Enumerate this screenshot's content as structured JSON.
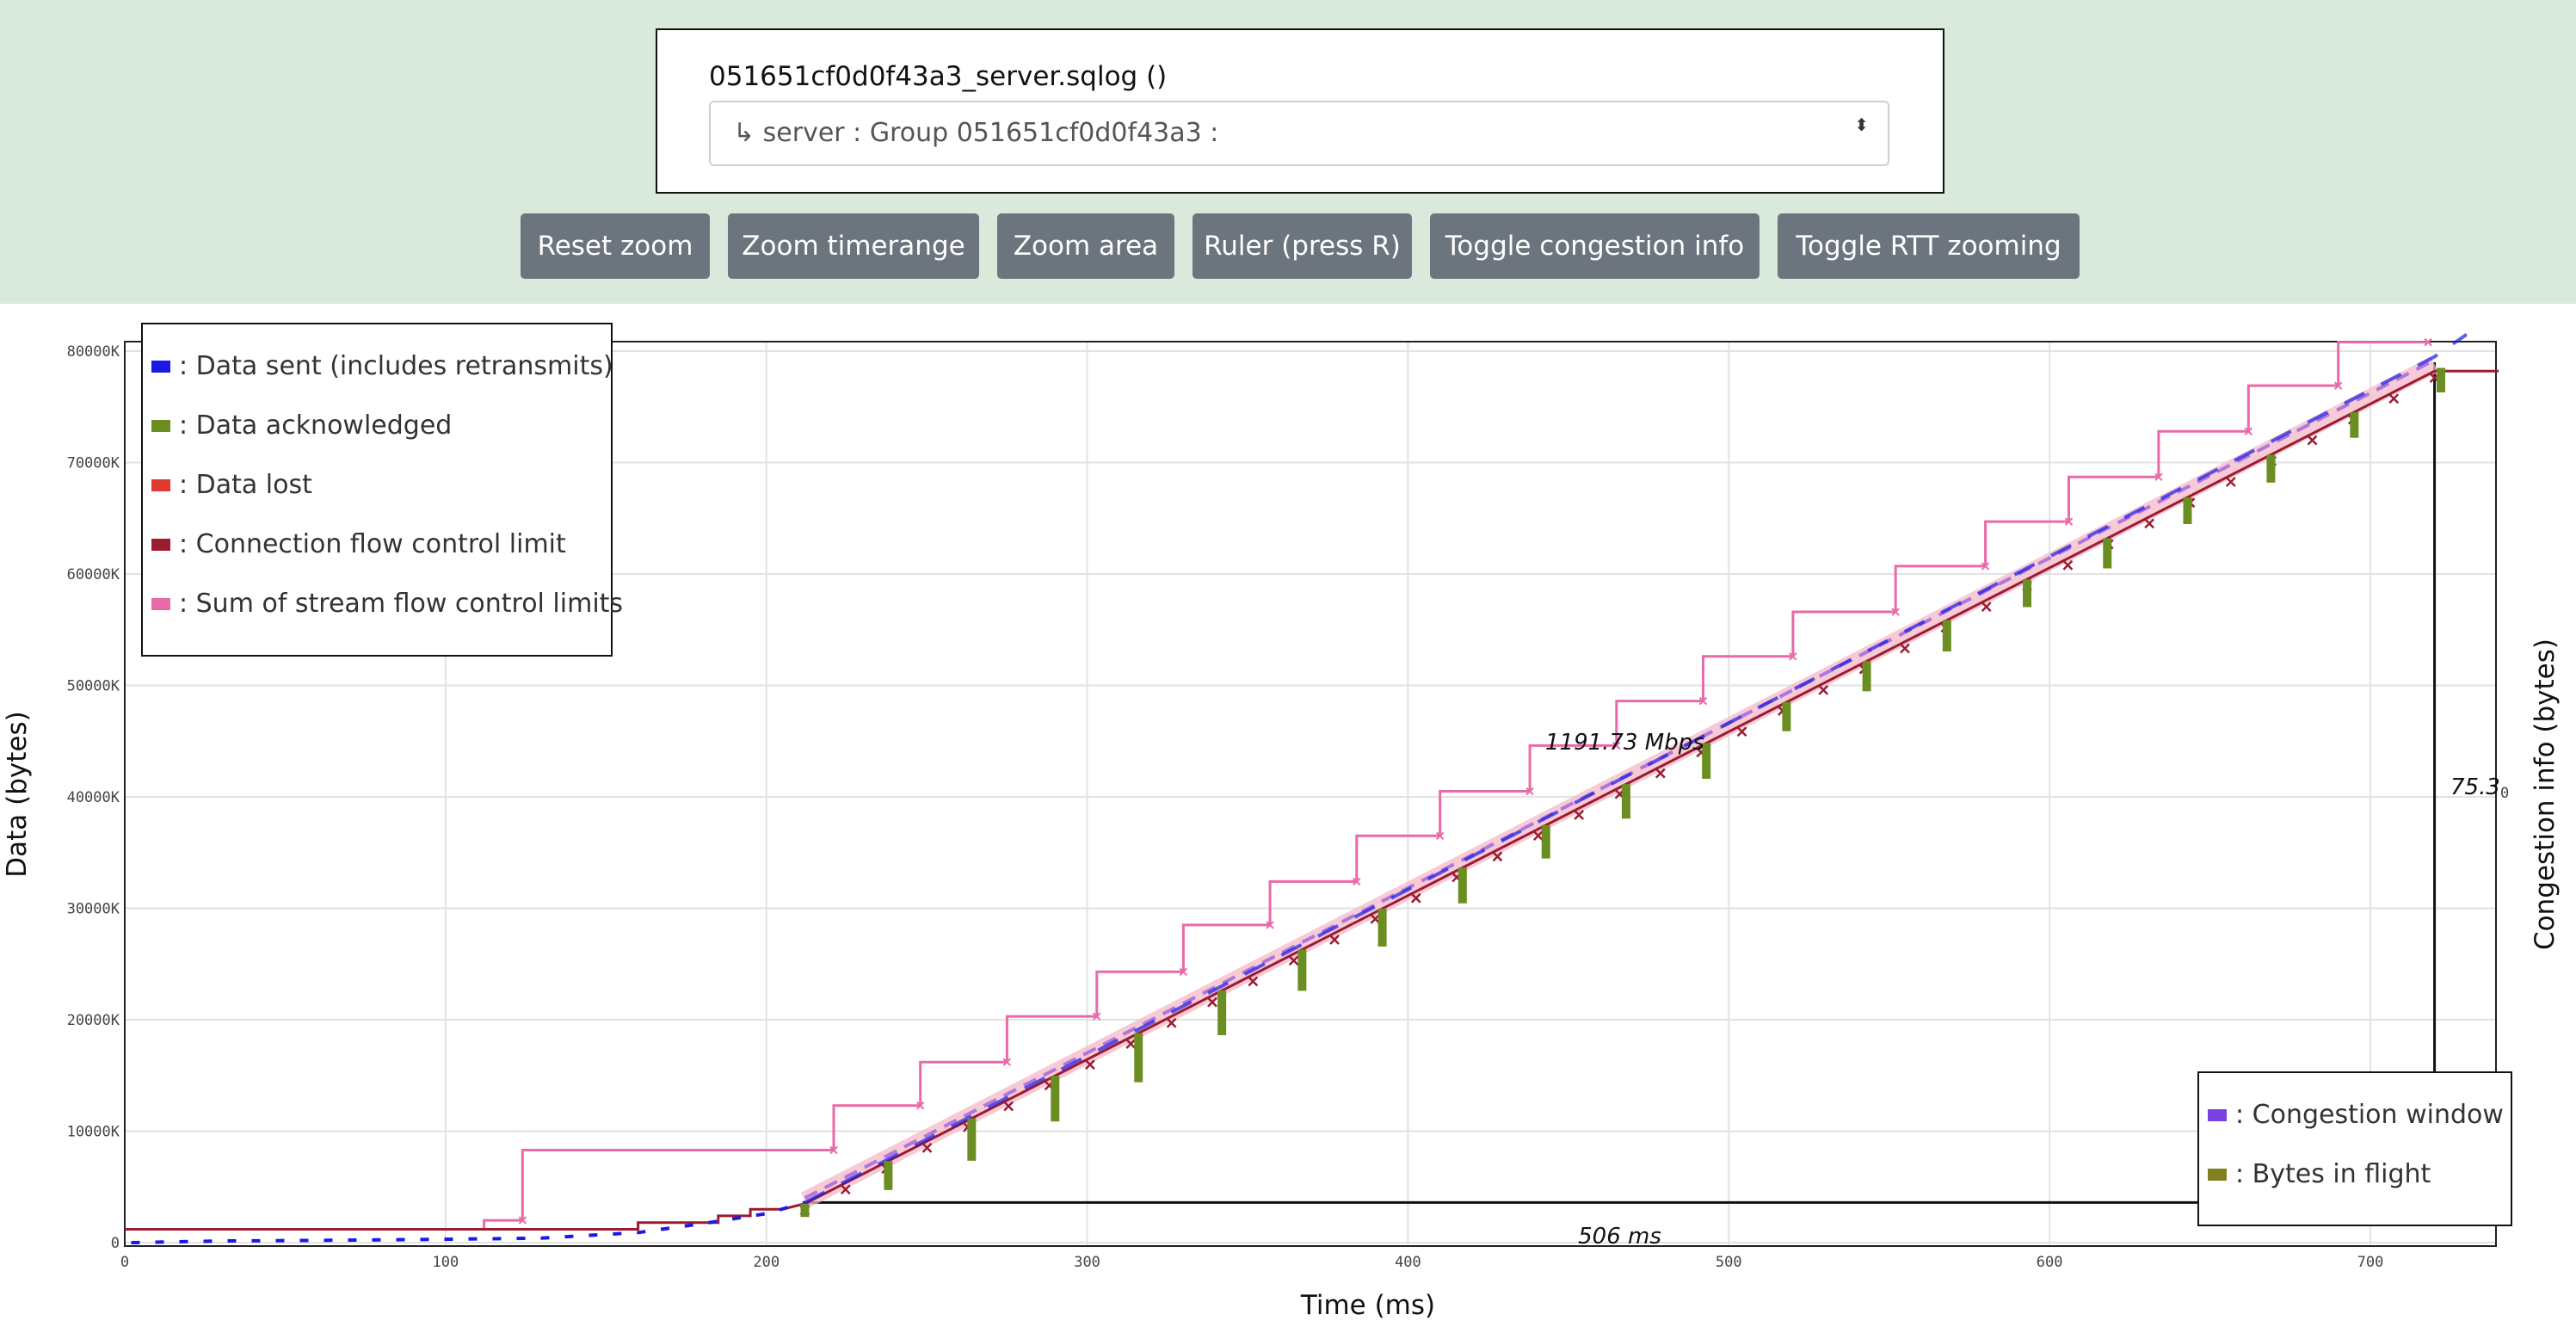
{
  "header": {
    "file_title": "051651cf0d0f43a3_server.sqlog ()",
    "select_value": "↳ server : Group 051651cf0d0f43a3 :",
    "caret": "⬍"
  },
  "toolbar": {
    "buttons": [
      "Reset zoom",
      "Zoom timerange",
      "Zoom area",
      "Ruler (press R)",
      "Toggle congestion info",
      "Toggle RTT zooming"
    ]
  },
  "colors": {
    "sent": "#1a1ae6",
    "acked": "#6b8e23",
    "lost": "#e03a2f",
    "conn_fc": "#9b1b30",
    "stream_fc": "#e86aa8",
    "cwnd": "#7b3fe0",
    "bif": "#808020"
  },
  "chart_data": {
    "type": "line",
    "xlabel": "Time (ms)",
    "ylabel": "Data (bytes)",
    "y2label": "Congestion info (bytes)",
    "xlim": [
      0,
      740
    ],
    "ylim": [
      0,
      80000
    ],
    "x_ticks": [
      "0",
      "100",
      "200",
      "300",
      "400",
      "500",
      "600",
      "700"
    ],
    "x_tick_values": [
      0,
      100,
      200,
      300,
      400,
      500,
      600,
      700
    ],
    "y_ticks": [
      "0",
      "10000K",
      "20000K",
      "30000K",
      "40000K",
      "50000K",
      "60000K",
      "70000K",
      "80000K"
    ],
    "y_tick_values": [
      0,
      10000,
      20000,
      30000,
      40000,
      50000,
      60000,
      70000,
      80000
    ],
    "y2_tick": "0",
    "grid": true,
    "legend_left": [
      {
        "key": "sent",
        "label": ": Data sent (includes retransmits)"
      },
      {
        "key": "acked",
        "label": ": Data acknowledged"
      },
      {
        "key": "lost",
        "label": ": Data lost"
      },
      {
        "key": "conn_fc",
        "label": ": Connection flow control limit"
      },
      {
        "key": "stream_fc",
        "label": ": Sum of stream flow control limits"
      }
    ],
    "legend_right": [
      {
        "key": "cwnd",
        "label": ": Congestion window"
      },
      {
        "key": "bif",
        "label": ": Bytes in flight"
      }
    ],
    "annotations": {
      "throughput": "1191.73 Mbps",
      "duration": "506 ms",
      "ruler_value": "75.3"
    },
    "ruler": {
      "x_start": 212,
      "x_end": 720,
      "y_start": 3600,
      "y_end": 79000,
      "label_x": 466
    },
    "series": {
      "sent_early": [
        [
          2,
          0
        ],
        [
          30,
          150
        ],
        [
          60,
          200
        ],
        [
          100,
          300
        ],
        [
          130,
          400
        ],
        [
          160,
          900
        ],
        [
          180,
          1700
        ],
        [
          200,
          2600
        ],
        [
          212,
          3600
        ]
      ],
      "sent_main": [
        [
          212,
          3600
        ],
        [
          720,
          79500
        ],
        [
          730,
          81500
        ]
      ],
      "conn_fc": [
        [
          0,
          1200
        ],
        [
          160,
          1200
        ],
        [
          160,
          1800
        ],
        [
          185,
          1800
        ],
        [
          185,
          2400
        ],
        [
          195,
          2400
        ],
        [
          195,
          3000
        ],
        [
          205,
          3000
        ],
        [
          212,
          3500
        ],
        [
          720,
          78200
        ],
        [
          740,
          78200
        ]
      ],
      "stream_fc_steps": [
        [
          0,
          1200
        ],
        [
          112,
          1200
        ],
        [
          112,
          2000
        ],
        [
          124,
          2000
        ],
        [
          124,
          8300
        ],
        [
          221,
          8300
        ],
        [
          221,
          12300
        ],
        [
          248,
          12300
        ],
        [
          248,
          16200
        ],
        [
          275,
          16200
        ],
        [
          275,
          20300
        ],
        [
          303,
          20300
        ],
        [
          303,
          24300
        ],
        [
          330,
          24300
        ],
        [
          330,
          28500
        ],
        [
          357,
          28500
        ],
        [
          357,
          32400
        ],
        [
          384,
          32400
        ],
        [
          384,
          36500
        ],
        [
          410,
          36500
        ],
        [
          410,
          40500
        ],
        [
          438,
          40500
        ],
        [
          438,
          44600
        ],
        [
          465,
          44600
        ],
        [
          465,
          48600
        ],
        [
          492,
          48600
        ],
        [
          492,
          52600
        ],
        [
          520,
          52600
        ],
        [
          520,
          56600
        ],
        [
          552,
          56600
        ],
        [
          552,
          60700
        ],
        [
          580,
          60700
        ],
        [
          580,
          64700
        ],
        [
          606,
          64700
        ],
        [
          606,
          68700
        ],
        [
          634,
          68700
        ],
        [
          634,
          72800
        ],
        [
          662,
          72800
        ],
        [
          662,
          76900
        ],
        [
          690,
          76900
        ],
        [
          690,
          80800
        ],
        [
          718,
          80800
        ]
      ],
      "acked_bars": [
        [
          212,
          1200
        ],
        [
          238,
          2600
        ],
        [
          264,
          3800
        ],
        [
          290,
          4100
        ],
        [
          316,
          4400
        ],
        [
          342,
          4000
        ],
        [
          367,
          3700
        ],
        [
          392,
          3400
        ],
        [
          417,
          3200
        ],
        [
          443,
          3000
        ],
        [
          468,
          3100
        ],
        [
          493,
          3200
        ],
        [
          518,
          2600
        ],
        [
          543,
          2700
        ],
        [
          568,
          2800
        ],
        [
          593,
          2500
        ],
        [
          618,
          2700
        ],
        [
          643,
          2400
        ],
        [
          669,
          2500
        ],
        [
          695,
          2300
        ],
        [
          722,
          2200
        ]
      ]
    }
  }
}
